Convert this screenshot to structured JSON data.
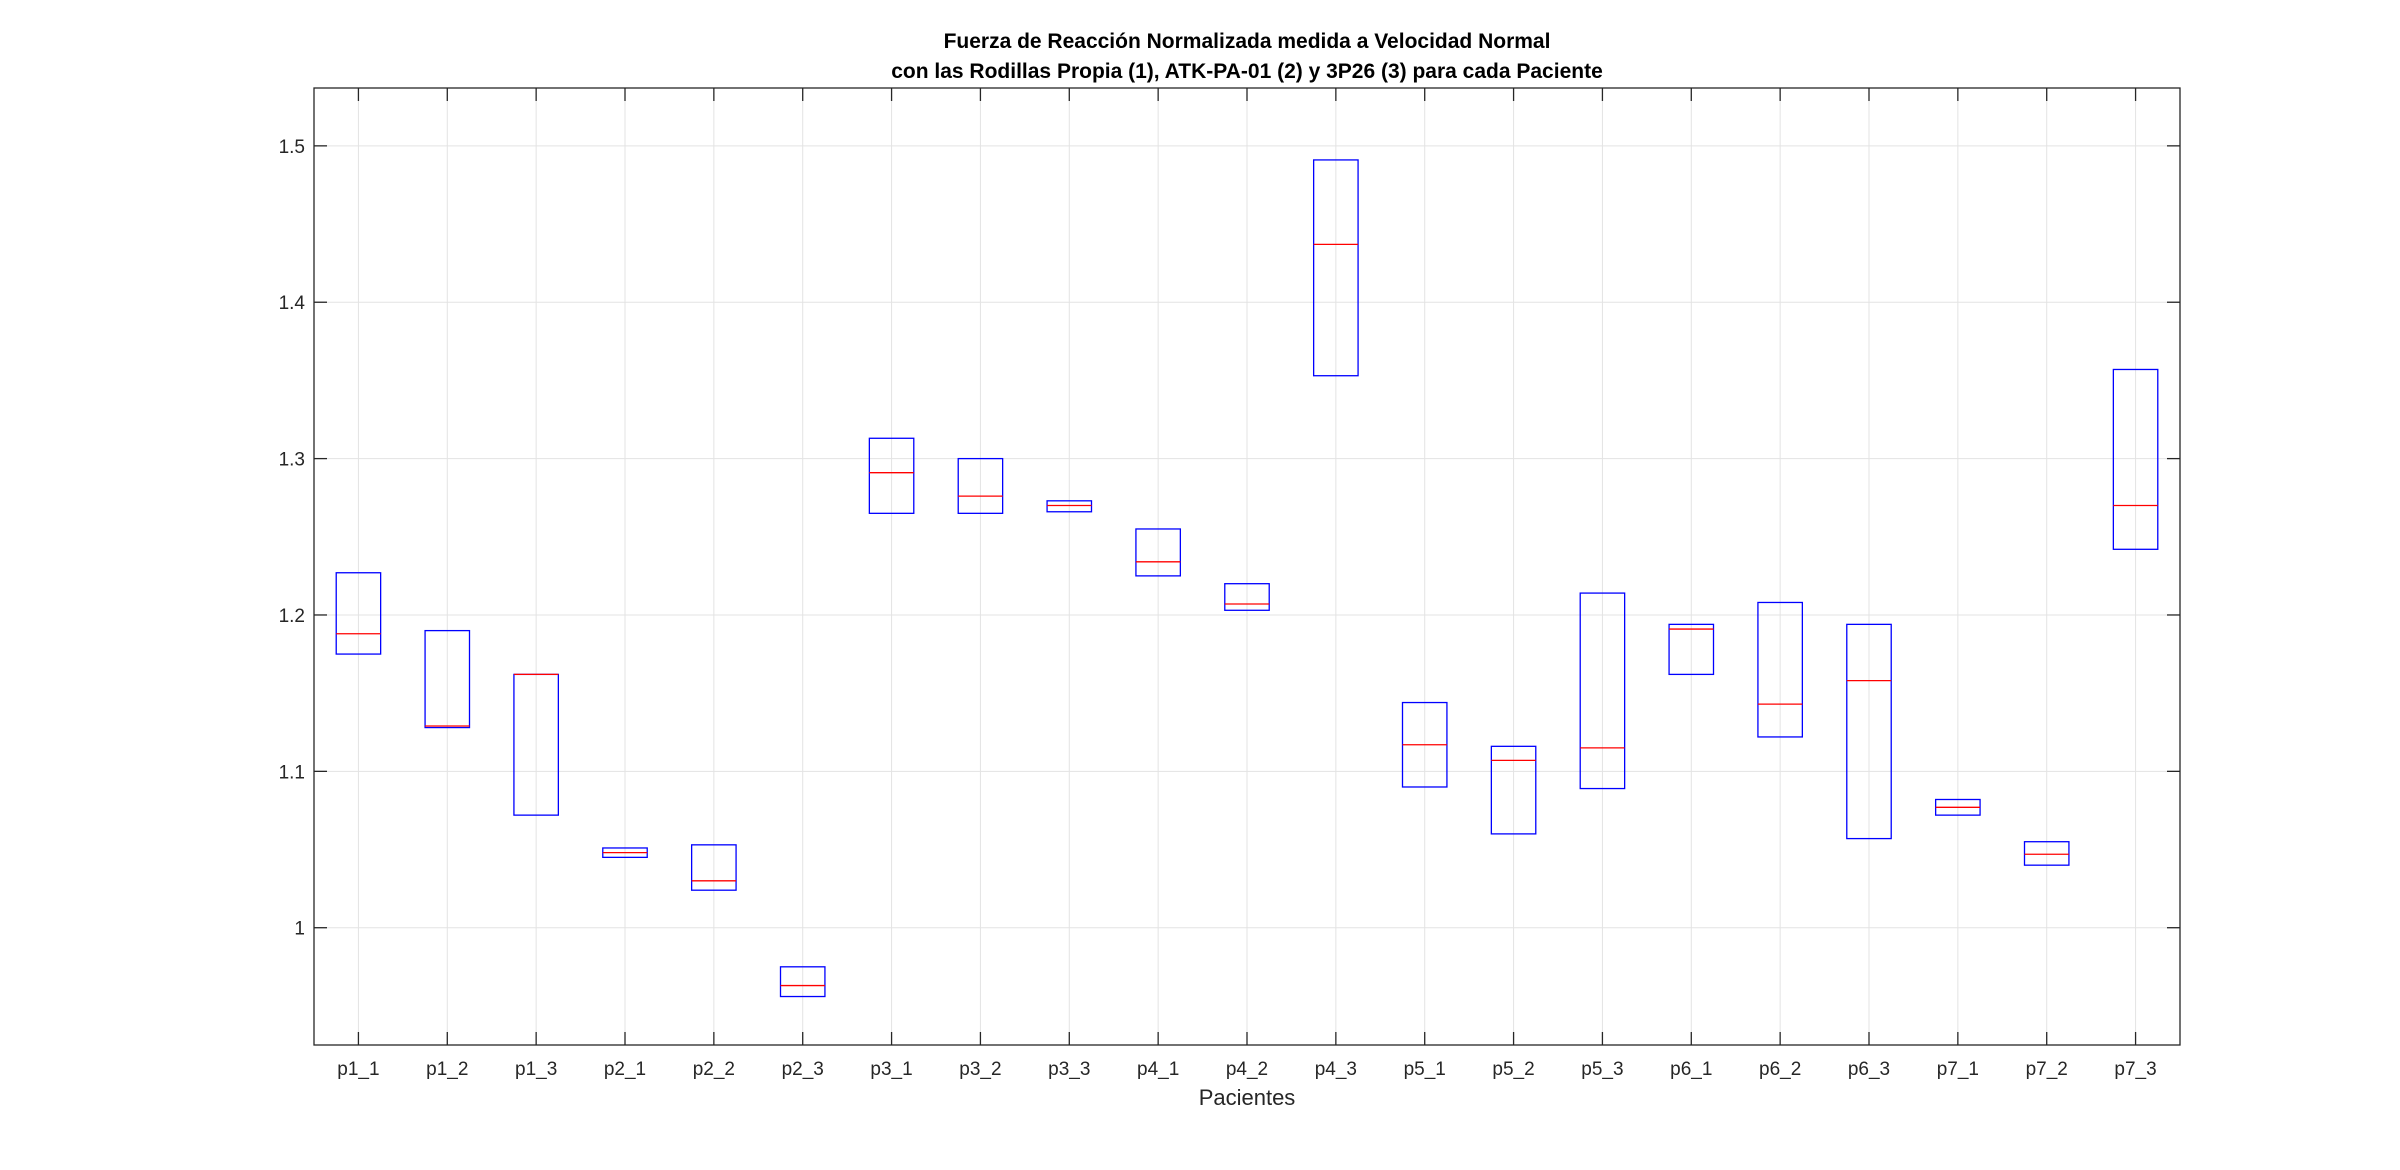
{
  "chart_data": {
    "type": "box",
    "title": [
      "Fuerza de Reacción Normalizada medida a Velocidad Normal",
      "con las Rodillas Propia (1), ATK-PA-01 (2) y 3P26 (3) para cada Paciente"
    ],
    "xlabel": "Pacientes",
    "ylabel": "",
    "ylim": [
      0.925,
      1.537
    ],
    "yticks": [
      1,
      1.1,
      1.2,
      1.3,
      1.4,
      1.5
    ],
    "ytick_labels": [
      "1",
      "1.1",
      "1.2",
      "1.3",
      "1.4",
      "1.5"
    ],
    "grid": true,
    "box_color": "#0000ff",
    "median_color": "#ff0000",
    "categories": [
      "p1_1",
      "p1_2",
      "p1_3",
      "p2_1",
      "p2_2",
      "p2_3",
      "p3_1",
      "p3_2",
      "p3_3",
      "p4_1",
      "p4_2",
      "p4_3",
      "p5_1",
      "p5_2",
      "p5_3",
      "p6_1",
      "p6_2",
      "p6_3",
      "p7_1",
      "p7_2",
      "p7_3"
    ],
    "boxes": [
      {
        "q1": 1.175,
        "median": 1.188,
        "q3": 1.227
      },
      {
        "q1": 1.128,
        "median": 1.129,
        "q3": 1.19
      },
      {
        "q1": 1.072,
        "median": 1.162,
        "q3": 1.162
      },
      {
        "q1": 1.045,
        "median": 1.048,
        "q3": 1.051
      },
      {
        "q1": 1.024,
        "median": 1.03,
        "q3": 1.053
      },
      {
        "q1": 0.956,
        "median": 0.963,
        "q3": 0.975
      },
      {
        "q1": 1.265,
        "median": 1.291,
        "q3": 1.313
      },
      {
        "q1": 1.265,
        "median": 1.276,
        "q3": 1.3
      },
      {
        "q1": 1.266,
        "median": 1.27,
        "q3": 1.273
      },
      {
        "q1": 1.225,
        "median": 1.234,
        "q3": 1.255
      },
      {
        "q1": 1.203,
        "median": 1.207,
        "q3": 1.22
      },
      {
        "q1": 1.353,
        "median": 1.437,
        "q3": 1.491
      },
      {
        "q1": 1.09,
        "median": 1.117,
        "q3": 1.144
      },
      {
        "q1": 1.06,
        "median": 1.107,
        "q3": 1.116
      },
      {
        "q1": 1.089,
        "median": 1.115,
        "q3": 1.214
      },
      {
        "q1": 1.162,
        "median": 1.191,
        "q3": 1.194
      },
      {
        "q1": 1.122,
        "median": 1.143,
        "q3": 1.208
      },
      {
        "q1": 1.057,
        "median": 1.158,
        "q3": 1.194
      },
      {
        "q1": 1.072,
        "median": 1.077,
        "q3": 1.082
      },
      {
        "q1": 1.04,
        "median": 1.047,
        "q3": 1.055
      },
      {
        "q1": 1.242,
        "median": 1.27,
        "q3": 1.357
      }
    ]
  }
}
